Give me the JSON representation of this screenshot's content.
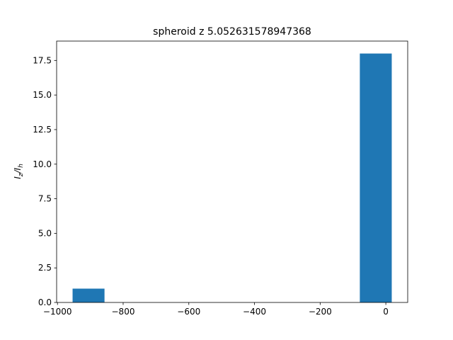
{
  "chart_data": {
    "type": "histogram",
    "title": "spheroid z 5.052631578947368",
    "ylabel": [
      "I",
      "z",
      "/I",
      "h"
    ],
    "bins": [
      -954,
      -856.8,
      -759.6,
      -662.4,
      -565.2,
      -468,
      -370.8,
      -273.6,
      -176.4,
      -79.2,
      18
    ],
    "values": [
      1,
      0,
      0,
      0,
      0,
      0,
      0,
      0,
      0,
      18
    ],
    "color": "#1f77b4",
    "xlim": [
      -1002.6,
      66.6
    ],
    "xticks": [
      {
        "value": -1000,
        "label": "−1000"
      },
      {
        "value": -800,
        "label": "−800"
      },
      {
        "value": -600,
        "label": "−600"
      },
      {
        "value": -400,
        "label": "−400"
      },
      {
        "value": -200,
        "label": "−200"
      },
      0
    ],
    "ylim": [
      0,
      18.9
    ],
    "yticks": [
      {
        "value": 0,
        "label": "0.0"
      },
      {
        "value": 2.5,
        "label": "2.5"
      },
      {
        "value": 5,
        "label": "5.0"
      },
      {
        "value": 7.5,
        "label": "7.5"
      },
      {
        "value": 10,
        "label": "10.0"
      },
      {
        "value": 12.5,
        "label": "12.5"
      },
      {
        "value": 15,
        "label": "15.0"
      },
      {
        "value": 17.5,
        "label": "17.5"
      }
    ]
  }
}
